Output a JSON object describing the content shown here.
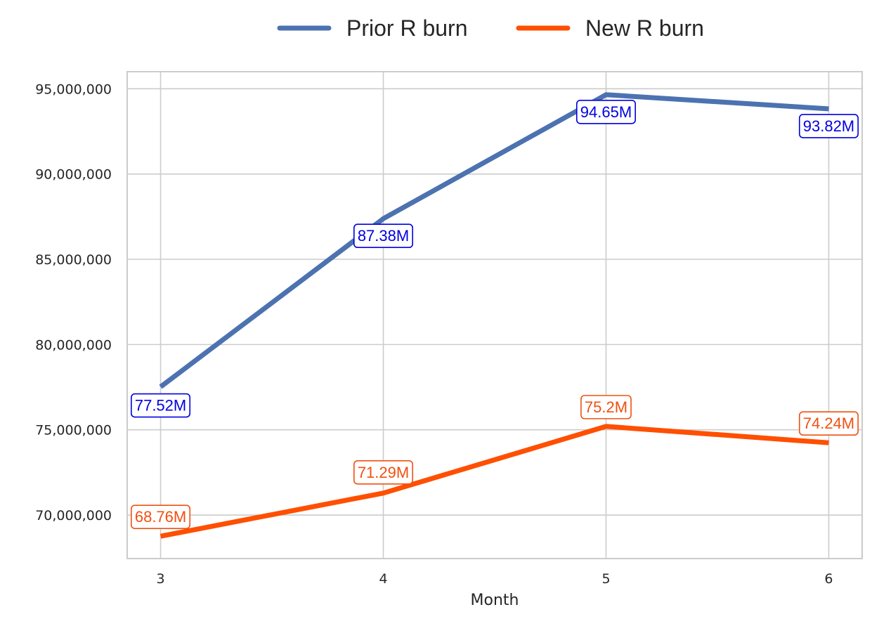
{
  "chart_data": {
    "type": "line",
    "title": "",
    "xlabel": "Month",
    "ylabel": "",
    "x": [
      3,
      4,
      5,
      6
    ],
    "xlim": [
      2.85,
      6.15
    ],
    "ylim": [
      67450000,
      96000000
    ],
    "y_ticks": [
      70000000,
      75000000,
      80000000,
      85000000,
      90000000,
      95000000
    ],
    "y_tick_labels": [
      "70,000,000",
      "75,000,000",
      "80,000,000",
      "85,000,000",
      "90,000,000",
      "95,000,000"
    ],
    "x_tick_labels": [
      "3",
      "4",
      "5",
      "6"
    ],
    "grid": true,
    "legend_position": "top-center",
    "series": [
      {
        "name": "Prior R burn",
        "color": "#4c72b0",
        "label_color": "#0000e0",
        "values": [
          77520000,
          87380000,
          94650000,
          93820000
        ],
        "labels": [
          "77.52M",
          "87.38M",
          "94.65M",
          "93.82M"
        ]
      },
      {
        "name": "New R burn",
        "color": "#ff4f00",
        "label_color": "#f05010",
        "values": [
          68760000,
          71290000,
          75200000,
          74240000
        ],
        "labels": [
          "68.76M",
          "71.29M",
          "75.2M",
          "74.24M"
        ]
      }
    ]
  }
}
